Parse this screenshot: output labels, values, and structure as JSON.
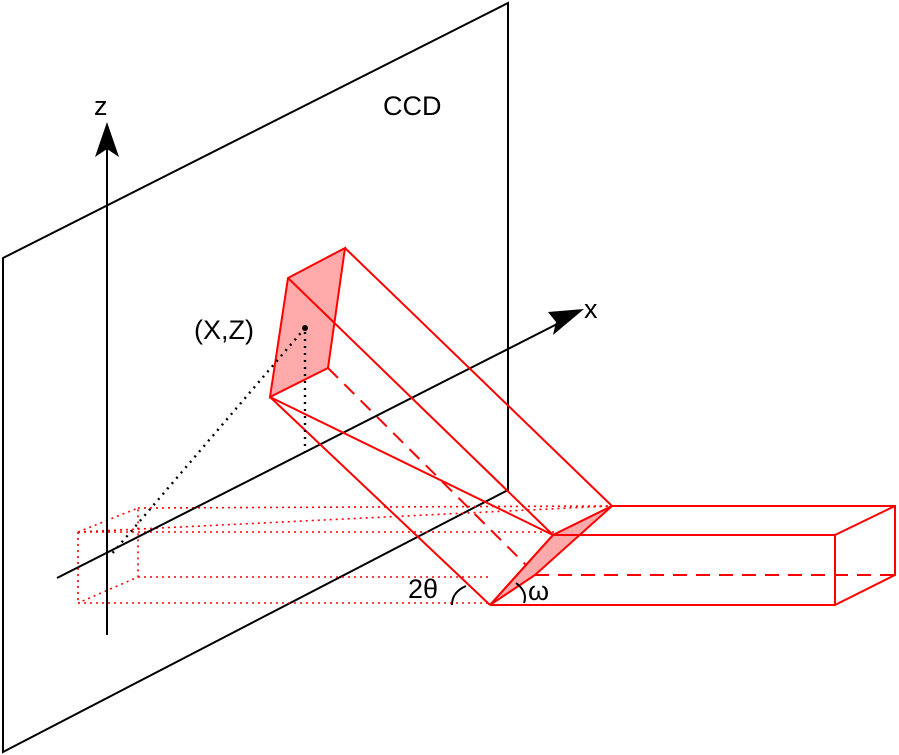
{
  "labels": {
    "z_axis": "z",
    "x_axis": "x",
    "detector": "CCD",
    "point": "(X,Z)",
    "two_theta": "2θ",
    "omega": "ω"
  },
  "colors": {
    "beam": "#ff0000",
    "beam_face": "#ffaaaa",
    "line": "#000000"
  }
}
